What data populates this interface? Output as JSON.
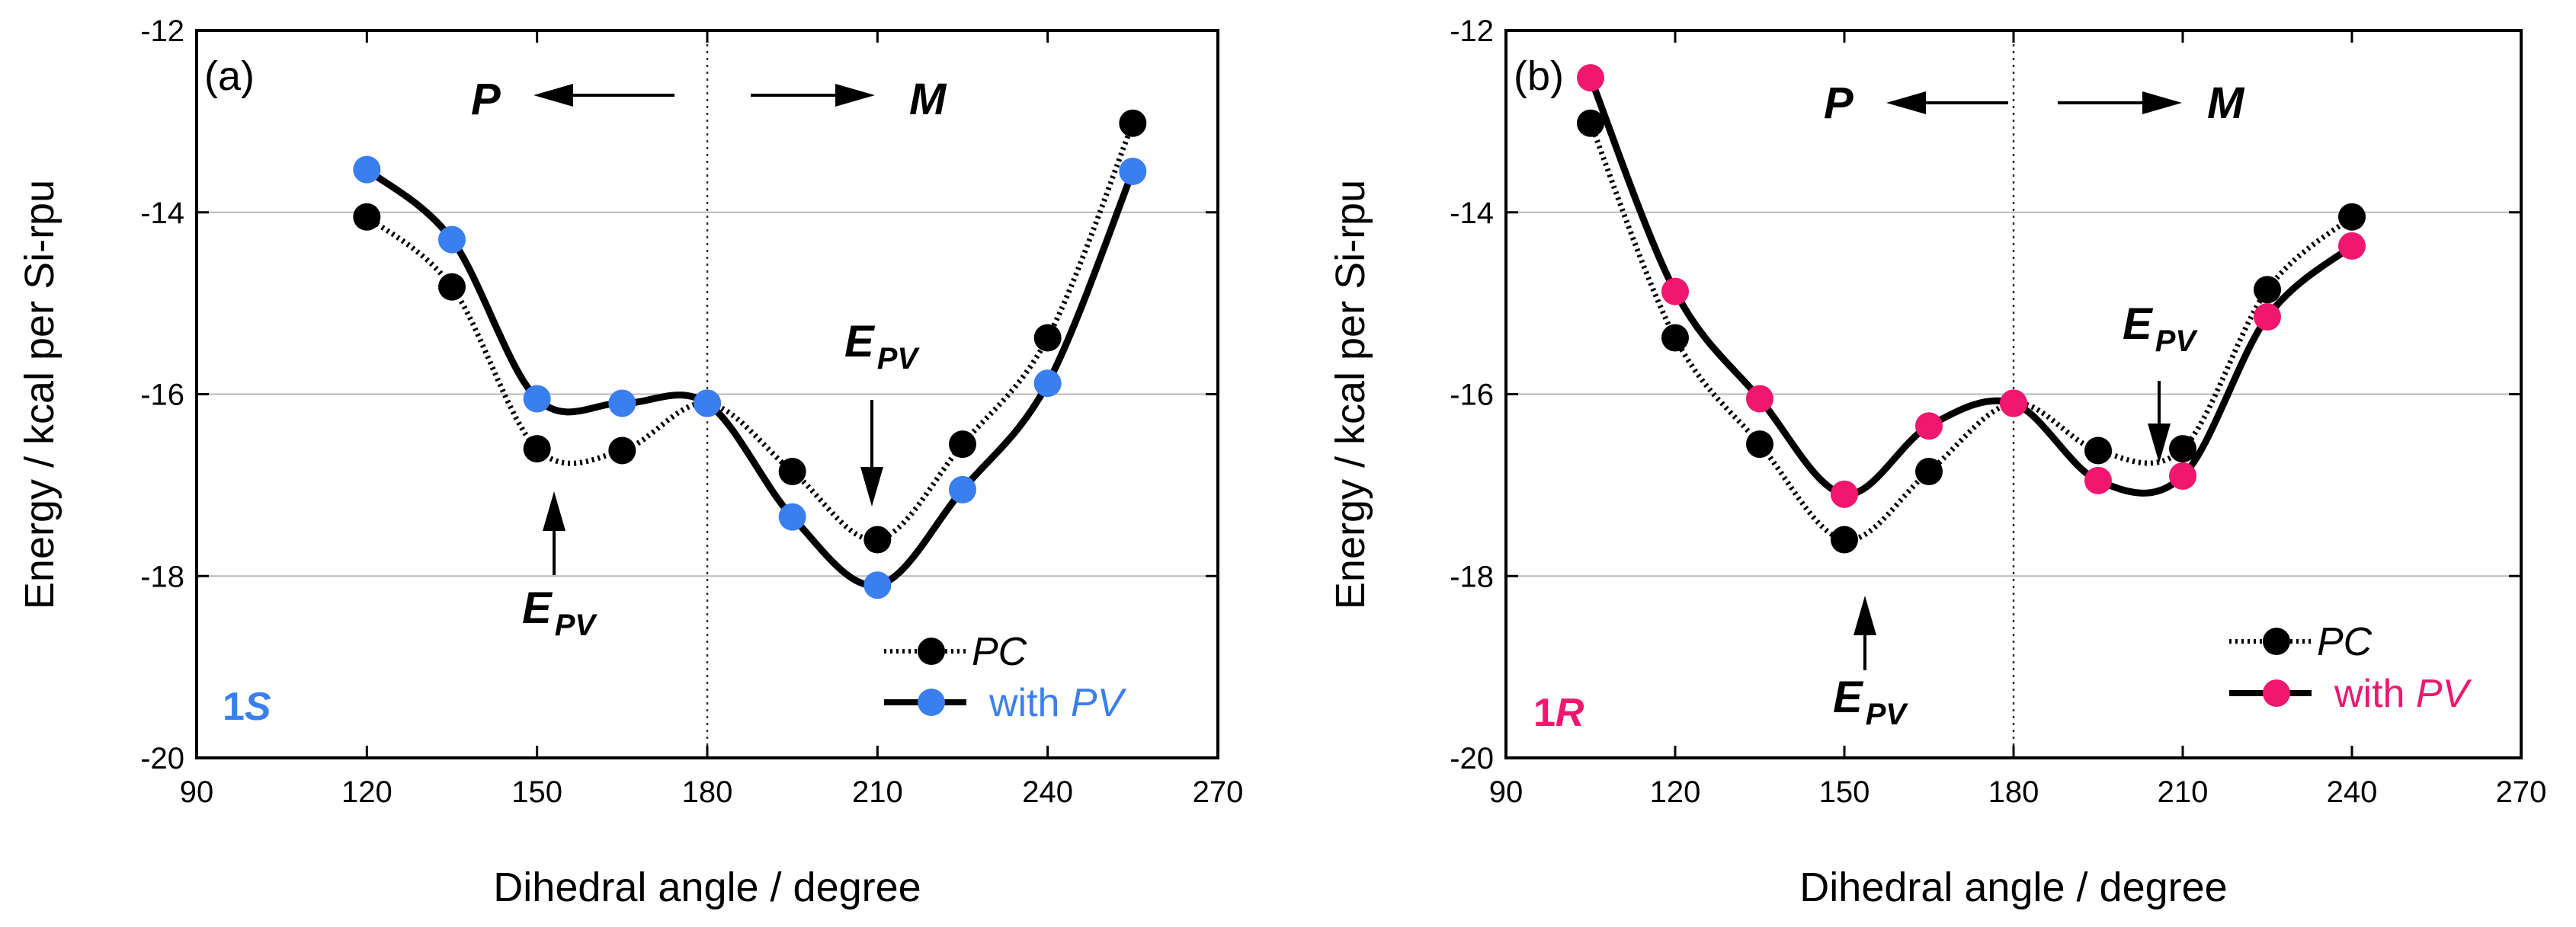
{
  "chart_data": [
    {
      "type": "line",
      "panel_label": "(a)",
      "sample": {
        "num": "1",
        "ital": "S"
      },
      "color_pv": "#3a7ff0",
      "color_pc": "#000000",
      "xlabel": "Dihedral angle / degree",
      "ylabel": "Energy / kcal per Si-rpu",
      "xlim": [
        90,
        270
      ],
      "ylim": [
        -20,
        -12
      ],
      "xticks": [
        90,
        120,
        150,
        180,
        210,
        240,
        270
      ],
      "yticks": [
        -20,
        -18,
        -16,
        -14,
        -12
      ],
      "xtick_labels": [
        "90",
        "120",
        "150",
        "180",
        "210",
        "240",
        "270"
      ],
      "ytick_labels": [
        "-20",
        "-18",
        "-16",
        "-14",
        "-12"
      ],
      "series": [
        {
          "name": "PC",
          "x": [
            120,
            135,
            150,
            165,
            180,
            195,
            210,
            225,
            240,
            255
          ],
          "y": [
            -14.05,
            -14.82,
            -16.6,
            -16.62,
            -16.1,
            -16.85,
            -17.6,
            -16.55,
            -15.38,
            -13.02
          ]
        },
        {
          "name": "with PV",
          "x": [
            120,
            135,
            150,
            165,
            180,
            195,
            210,
            225,
            240,
            255
          ],
          "y": [
            -13.53,
            -14.3,
            -16.05,
            -16.1,
            -16.1,
            -17.35,
            -18.1,
            -17.05,
            -15.88,
            -13.55
          ]
        }
      ],
      "arrow_labels": {
        "left": "P",
        "right": "M"
      },
      "epv": {
        "main": "E",
        "sub": "PV"
      },
      "legend": {
        "pc_label": "PC",
        "pv_prefix": "with ",
        "pv_ital": "PV"
      }
    },
    {
      "type": "line",
      "panel_label": "(b)",
      "sample": {
        "num": "1",
        "ital": "R"
      },
      "color_pv": "#f0176f",
      "color_pc": "#000000",
      "xlabel": "Dihedral angle / degree",
      "ylabel": "Energy / kcal per Si-rpu",
      "xlim": [
        90,
        270
      ],
      "ylim": [
        -20,
        -12
      ],
      "xticks": [
        90,
        120,
        150,
        180,
        210,
        240,
        270
      ],
      "yticks": [
        -20,
        -18,
        -16,
        -14,
        -12
      ],
      "xtick_labels": [
        "90",
        "120",
        "150",
        "180",
        "210",
        "240",
        "270"
      ],
      "ytick_labels": [
        "-20",
        "-18",
        "-16",
        "-14",
        "-12"
      ],
      "series": [
        {
          "name": "PC",
          "x": [
            105,
            120,
            135,
            150,
            165,
            180,
            195,
            210,
            225,
            240
          ],
          "y": [
            -13.02,
            -15.38,
            -16.55,
            -17.6,
            -16.85,
            -16.1,
            -16.62,
            -16.6,
            -14.85,
            -14.05
          ]
        },
        {
          "name": "with PV",
          "x": [
            105,
            120,
            135,
            150,
            165,
            180,
            195,
            210,
            225,
            240
          ],
          "y": [
            -12.52,
            -14.87,
            -16.05,
            -17.1,
            -16.35,
            -16.1,
            -16.95,
            -16.9,
            -15.15,
            -14.37
          ]
        }
      ],
      "arrow_labels": {
        "left": "P",
        "right": "M"
      },
      "epv": {
        "main": "E",
        "sub": "PV"
      },
      "legend": {
        "pc_label": "PC",
        "pv_prefix": "with ",
        "pv_ital": "PV"
      }
    }
  ]
}
